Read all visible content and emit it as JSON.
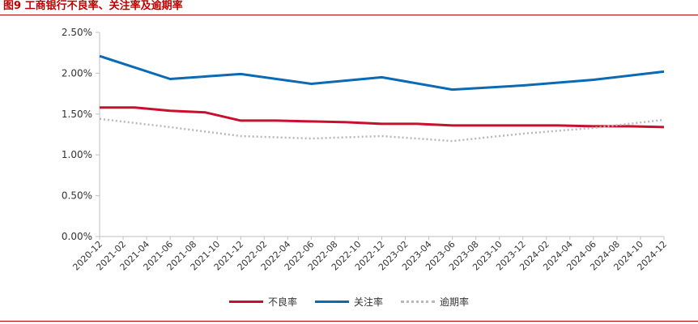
{
  "figure": {
    "title": "图9  工商银行不良率、关注率及逾期率"
  },
  "colors": {
    "title": "#c00000",
    "rule": "#c00000",
    "axis": "#bfbfbf"
  },
  "chart_data": {
    "type": "line",
    "title": "",
    "xlabel": "",
    "ylabel": "",
    "ylim": [
      0,
      0.025
    ],
    "y_ticks": [
      0,
      0.005,
      0.01,
      0.015,
      0.02,
      0.025
    ],
    "y_tick_labels": [
      "0.00%",
      "0.50%",
      "1.00%",
      "1.50%",
      "2.00%",
      "2.50%"
    ],
    "grid": false,
    "legend_position": "bottom",
    "categories": [
      "2020-12",
      "2021-02",
      "2021-04",
      "2021-06",
      "2021-08",
      "2021-10",
      "2021-12",
      "2022-02",
      "2022-04",
      "2022-06",
      "2022-08",
      "2022-10",
      "2022-12",
      "2023-02",
      "2023-04",
      "2023-06",
      "2023-08",
      "2023-10",
      "2023-12",
      "2024-02",
      "2024-04",
      "2024-06",
      "2024-08",
      "2024-10",
      "2024-12"
    ],
    "series": [
      {
        "name": "不良率",
        "color": "#c8102e",
        "style": "solid",
        "points": [
          [
            "2020-12",
            0.0158
          ],
          [
            "2021-03",
            0.0158
          ],
          [
            "2021-06",
            0.0154
          ],
          [
            "2021-09",
            0.0152
          ],
          [
            "2021-12",
            0.0142
          ],
          [
            "2022-03",
            0.0142
          ],
          [
            "2022-06",
            0.0141
          ],
          [
            "2022-09",
            0.014
          ],
          [
            "2022-12",
            0.0138
          ],
          [
            "2023-03",
            0.0138
          ],
          [
            "2023-06",
            0.0136
          ],
          [
            "2023-09",
            0.0136
          ],
          [
            "2023-12",
            0.0136
          ],
          [
            "2024-03",
            0.0136
          ],
          [
            "2024-06",
            0.0135
          ],
          [
            "2024-09",
            0.0135
          ],
          [
            "2024-12",
            0.0134
          ]
        ]
      },
      {
        "name": "关注率",
        "color": "#0a6ab4",
        "style": "solid",
        "points": [
          [
            "2020-12",
            0.0221
          ],
          [
            "2021-06",
            0.0193
          ],
          [
            "2021-12",
            0.0199
          ],
          [
            "2022-06",
            0.0187
          ],
          [
            "2022-12",
            0.0195
          ],
          [
            "2023-06",
            0.018
          ],
          [
            "2023-12",
            0.0185
          ],
          [
            "2024-06",
            0.0192
          ],
          [
            "2024-12",
            0.0202
          ]
        ]
      },
      {
        "name": "逾期率",
        "color": "#b8b8b8",
        "style": "dotted",
        "points": [
          [
            "2020-12",
            0.0144
          ],
          [
            "2021-06",
            0.0134
          ],
          [
            "2021-12",
            0.0123
          ],
          [
            "2022-06",
            0.012
          ],
          [
            "2022-12",
            0.0123
          ],
          [
            "2023-06",
            0.0117
          ],
          [
            "2023-12",
            0.0126
          ],
          [
            "2024-06",
            0.0133
          ],
          [
            "2024-12",
            0.0143
          ]
        ]
      }
    ]
  }
}
